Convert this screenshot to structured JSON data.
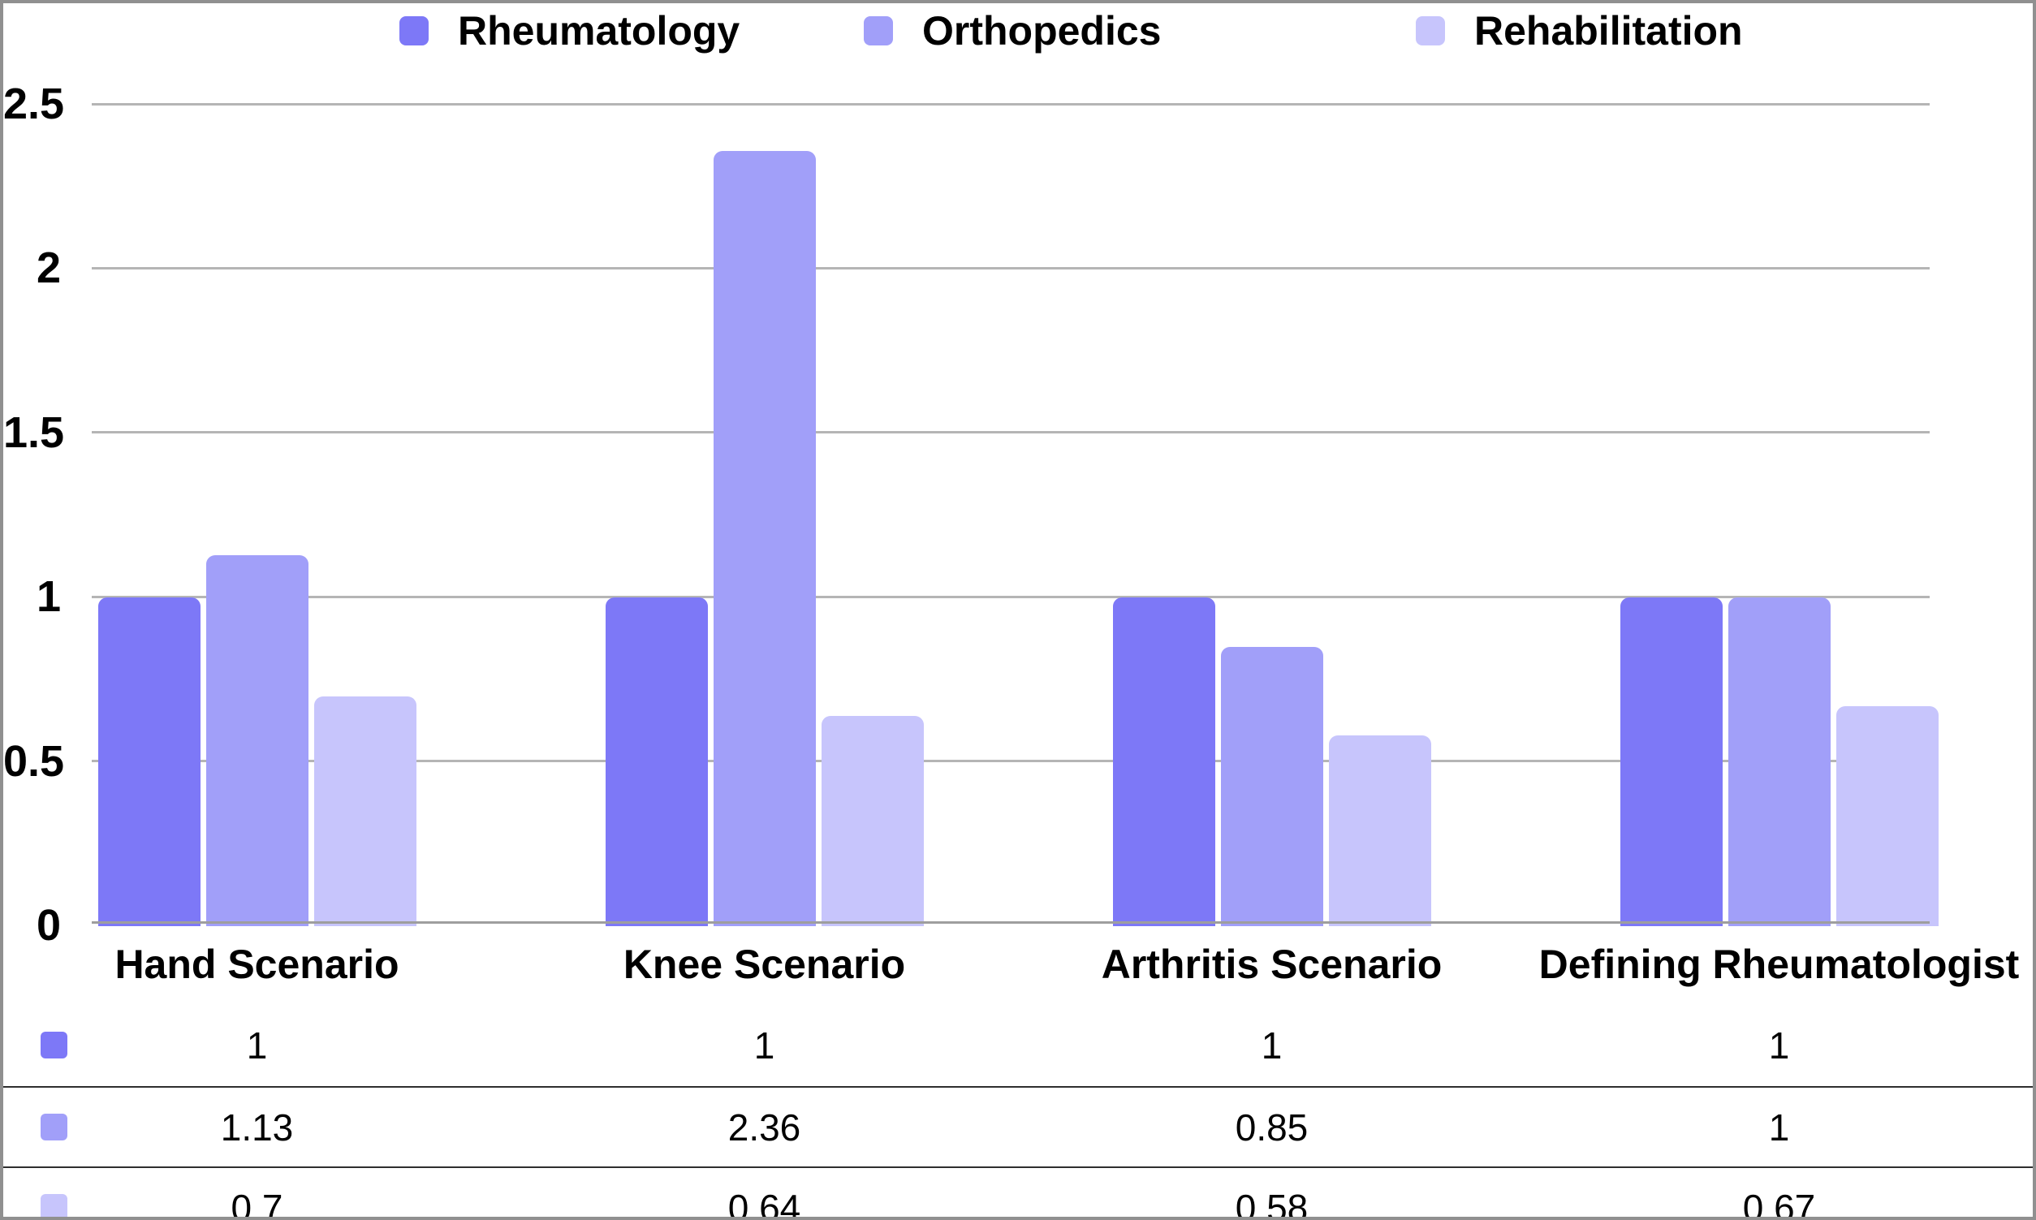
{
  "chart_data": {
    "type": "bar",
    "title": "",
    "xlabel": "",
    "ylabel": "",
    "categories": [
      "Hand Scenario",
      "Knee Scenario",
      "Arthritis Scenario",
      "Defining Rheumatologist"
    ],
    "series": [
      {
        "name": "Rheumatology",
        "color": "#7d78f7",
        "values": [
          1,
          1,
          1,
          1
        ]
      },
      {
        "name": "Orthopedics",
        "color": "#a19ff9",
        "values": [
          1.13,
          2.36,
          0.85,
          1
        ]
      },
      {
        "name": "Rehabilitation",
        "color": "#c7c5fc",
        "values": [
          0.7,
          0.64,
          0.58,
          0.67
        ]
      }
    ],
    "yticks": [
      "2.5",
      "2",
      "1.5",
      "1",
      "0.5",
      "0"
    ],
    "ylim": [
      0,
      2.5
    ],
    "grid": true,
    "legend_position": "top",
    "gridline_color": "#b5b5b5",
    "axis_color": "#9e9e9e"
  }
}
